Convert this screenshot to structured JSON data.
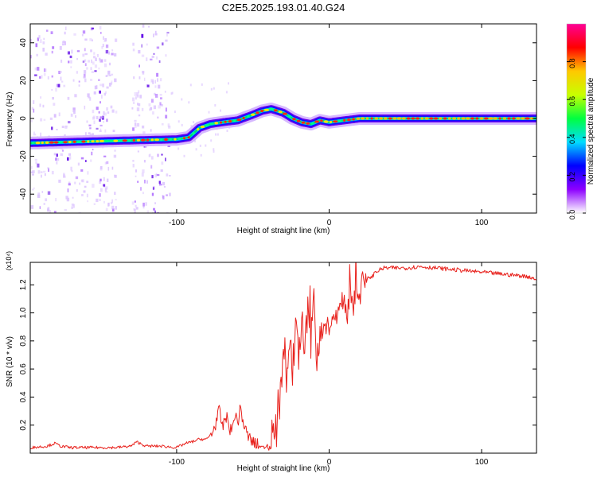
{
  "figure": {
    "title": "C2E5.2025.193.01.40.G24"
  },
  "chart_data": [
    {
      "type": "heatmap",
      "xlabel": "Height of straight line (km)",
      "ylabel": "Frequency (Hz)",
      "xlim": [
        -196,
        136
      ],
      "ylim": [
        -50,
        50
      ],
      "x_ticks": [
        -100,
        0,
        100
      ],
      "x_tick_labels": [
        "-100",
        "0",
        "100"
      ],
      "y_ticks": [
        -40,
        -20,
        0,
        20,
        40
      ],
      "y_tick_labels": [
        "-40",
        "-20",
        "0",
        "20",
        "40"
      ],
      "ridge": {
        "x": [
          -196,
          -150,
          -100,
          -92,
          -85,
          -78,
          -70,
          -60,
          -50,
          -44,
          -38,
          -30,
          -24,
          -18,
          -12,
          -6,
          0,
          10,
          20,
          60,
          100,
          136
        ],
        "y": [
          -13,
          -12,
          -11,
          -10,
          -5,
          -3,
          -2,
          -1,
          2,
          4,
          5,
          3,
          0,
          -2,
          -3,
          -1,
          -2,
          -1,
          0,
          0,
          0,
          0
        ]
      },
      "noise_bands_x": [
        [
          -196,
          -140
        ],
        [
          -130,
          -105
        ]
      ],
      "colorbar": {
        "label": "Normalized spectral amplitude",
        "range": [
          0,
          1
        ],
        "ticks": [
          0.0,
          0.2,
          0.4,
          0.6,
          0.8
        ],
        "tick_labels": [
          "0.0",
          "0.2",
          "0.4",
          "0.6",
          "0.8"
        ],
        "colors": [
          "#ffffff",
          "#8d00ff",
          "#0000ff",
          "#00dcff",
          "#00ff40",
          "#c8ff00",
          "#ffc800",
          "#ff0000",
          "#ff0096"
        ]
      }
    },
    {
      "type": "line",
      "xlabel": "Height of straight line (km)",
      "ylabel": "SNR (10 * v/v)",
      "y_scale_label": "(x10⁴)",
      "xlim": [
        -196,
        136
      ],
      "ylim": [
        0,
        1.36
      ],
      "x_ticks": [
        -100,
        0,
        100
      ],
      "x_tick_labels": [
        "-100",
        "0",
        "100"
      ],
      "y_ticks": [
        0.2,
        0.4,
        0.6,
        0.8,
        1.0,
        1.2
      ],
      "y_tick_labels": [
        "0.2",
        "0.4",
        "0.6",
        "0.8",
        "1.0",
        "1.2"
      ],
      "color": "#e8211c",
      "series": [
        {
          "x": [
            -196,
            -185,
            -180,
            -176,
            -170,
            -160,
            -150,
            -140,
            -130,
            -126,
            -120,
            -110,
            -100,
            -94,
            -90,
            -85,
            -80,
            -76,
            -72,
            -70,
            -68,
            -66,
            -64,
            -62,
            -60,
            -58,
            -56,
            -54,
            -52,
            -50,
            -48,
            -46,
            -42,
            -38,
            -34,
            -32,
            -30,
            -28,
            -26,
            -24,
            -22,
            -20,
            -18,
            -16,
            -14,
            -12,
            -10,
            -8,
            -6,
            -4,
            -2,
            0,
            2,
            4,
            6,
            8,
            10,
            12,
            14,
            16,
            18,
            20,
            22,
            24,
            26,
            28,
            30,
            32,
            34,
            36,
            40,
            50,
            60,
            70,
            80,
            90,
            100,
            110,
            120,
            130,
            136
          ],
          "y": [
            0.04,
            0.05,
            0.07,
            0.05,
            0.04,
            0.04,
            0.04,
            0.04,
            0.05,
            0.08,
            0.05,
            0.05,
            0.04,
            0.07,
            0.08,
            0.1,
            0.1,
            0.16,
            0.3,
            0.18,
            0.26,
            0.22,
            0.14,
            0.28,
            0.22,
            0.32,
            0.2,
            0.14,
            0.1,
            0.08,
            0.06,
            0.05,
            0.04,
            0.1,
            0.18,
            0.4,
            0.7,
            0.48,
            0.78,
            0.58,
            0.9,
            0.68,
            0.95,
            0.72,
            1.0,
            0.78,
            1.05,
            0.7,
            0.88,
            0.8,
            0.96,
            0.85,
            1.02,
            0.9,
            1.06,
            0.96,
            1.1,
            1.0,
            1.12,
            1.05,
            1.18,
            1.12,
            1.24,
            1.2,
            1.26,
            1.25,
            1.29,
            1.3,
            1.31,
            1.32,
            1.32,
            1.32,
            1.33,
            1.32,
            1.31,
            1.3,
            1.29,
            1.28,
            1.27,
            1.26,
            1.24
          ]
        }
      ]
    }
  ]
}
